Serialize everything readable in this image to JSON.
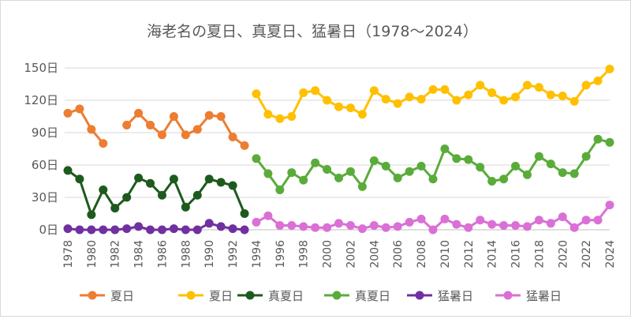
{
  "chart_data": {
    "type": "line",
    "title": "海老名の夏日、真夏日、猛暑日（1978～2024）",
    "xlabel": "",
    "ylabel": "",
    "ylim": [
      0,
      150
    ],
    "yticks": [
      0,
      30,
      60,
      90,
      120,
      150
    ],
    "ytick_labels": [
      "0日",
      "30日",
      "60日",
      "90日",
      "120日",
      "150日"
    ],
    "xlim": [
      1978,
      2024
    ],
    "xticks": [
      1978,
      1980,
      1982,
      1984,
      1986,
      1988,
      1990,
      1992,
      1994,
      1996,
      1998,
      2000,
      2002,
      2004,
      2006,
      2008,
      2010,
      2012,
      2014,
      2016,
      2018,
      2020,
      2022,
      2024
    ],
    "xtick_labels": [
      "1978",
      "1980",
      "1982",
      "1984",
      "1986",
      "1988",
      "1990",
      "1992",
      "1994",
      "1996",
      "1998",
      "2000",
      "2002",
      "2004",
      "2006",
      "2008",
      "2010",
      "2012",
      "2014",
      "2016",
      "2018",
      "2020",
      "2022",
      "2024"
    ],
    "grid": "horizontal",
    "legend_position": "bottom",
    "series": [
      {
        "name": "夏日",
        "color": "#ed7d31",
        "x": [
          1978,
          1979,
          1980,
          1981,
          1983,
          1984,
          1985,
          1986,
          1987,
          1988,
          1989,
          1990,
          1991,
          1992,
          1993
        ],
        "values": [
          108,
          112,
          93,
          80,
          97,
          108,
          97,
          88,
          105,
          88,
          93,
          106,
          105,
          86,
          78
        ]
      },
      {
        "name": "夏日",
        "color": "#ffc000",
        "x": [
          1994,
          1995,
          1996,
          1997,
          1998,
          1999,
          2000,
          2001,
          2002,
          2003,
          2004,
          2005,
          2006,
          2007,
          2008,
          2009,
          2010,
          2011,
          2012,
          2013,
          2014,
          2015,
          2016,
          2017,
          2018,
          2019,
          2020,
          2021,
          2022,
          2023,
          2024
        ],
        "values": [
          126,
          107,
          103,
          105,
          127,
          129,
          120,
          114,
          113,
          107,
          129,
          121,
          117,
          123,
          121,
          130,
          130,
          120,
          125,
          134,
          127,
          120,
          123,
          134,
          132,
          125,
          124,
          119,
          134,
          138,
          149
        ]
      },
      {
        "name": "真夏日",
        "color": "#1e5a1e",
        "x": [
          1978,
          1979,
          1980,
          1981,
          1982,
          1983,
          1984,
          1985,
          1986,
          1987,
          1988,
          1989,
          1990,
          1991,
          1992,
          1993
        ],
        "values": [
          55,
          47,
          14,
          37,
          20,
          30,
          48,
          43,
          32,
          47,
          21,
          32,
          47,
          44,
          41,
          15
        ]
      },
      {
        "name": "真夏日",
        "color": "#5aac3a",
        "x": [
          1994,
          1995,
          1996,
          1997,
          1998,
          1999,
          2000,
          2001,
          2002,
          2003,
          2004,
          2005,
          2006,
          2007,
          2008,
          2009,
          2010,
          2011,
          2012,
          2013,
          2014,
          2015,
          2016,
          2017,
          2018,
          2019,
          2020,
          2021,
          2022,
          2023,
          2024
        ],
        "values": [
          66,
          52,
          37,
          53,
          46,
          62,
          56,
          48,
          54,
          40,
          64,
          59,
          48,
          54,
          59,
          47,
          75,
          66,
          65,
          58,
          45,
          47,
          59,
          51,
          68,
          61,
          53,
          52,
          68,
          84,
          81
        ]
      },
      {
        "name": "猛暑日",
        "color": "#7030a0",
        "x": [
          1978,
          1979,
          1980,
          1981,
          1982,
          1983,
          1984,
          1985,
          1986,
          1987,
          1988,
          1989,
          1990,
          1991,
          1992,
          1993
        ],
        "values": [
          1,
          0,
          0,
          0,
          0,
          1,
          3,
          0,
          0,
          1,
          0,
          0,
          6,
          3,
          1,
          0
        ]
      },
      {
        "name": "猛暑日",
        "color": "#da70d6",
        "x": [
          1994,
          1995,
          1996,
          1997,
          1998,
          1999,
          2000,
          2001,
          2002,
          2003,
          2004,
          2005,
          2006,
          2007,
          2008,
          2009,
          2010,
          2011,
          2012,
          2013,
          2014,
          2015,
          2016,
          2017,
          2018,
          2019,
          2020,
          2021,
          2022,
          2023,
          2024
        ],
        "values": [
          7,
          13,
          4,
          4,
          3,
          2,
          2,
          6,
          4,
          1,
          4,
          2,
          3,
          7,
          10,
          0,
          10,
          5,
          2,
          9,
          5,
          4,
          4,
          3,
          9,
          6,
          12,
          2,
          9,
          9,
          23
        ]
      }
    ]
  }
}
